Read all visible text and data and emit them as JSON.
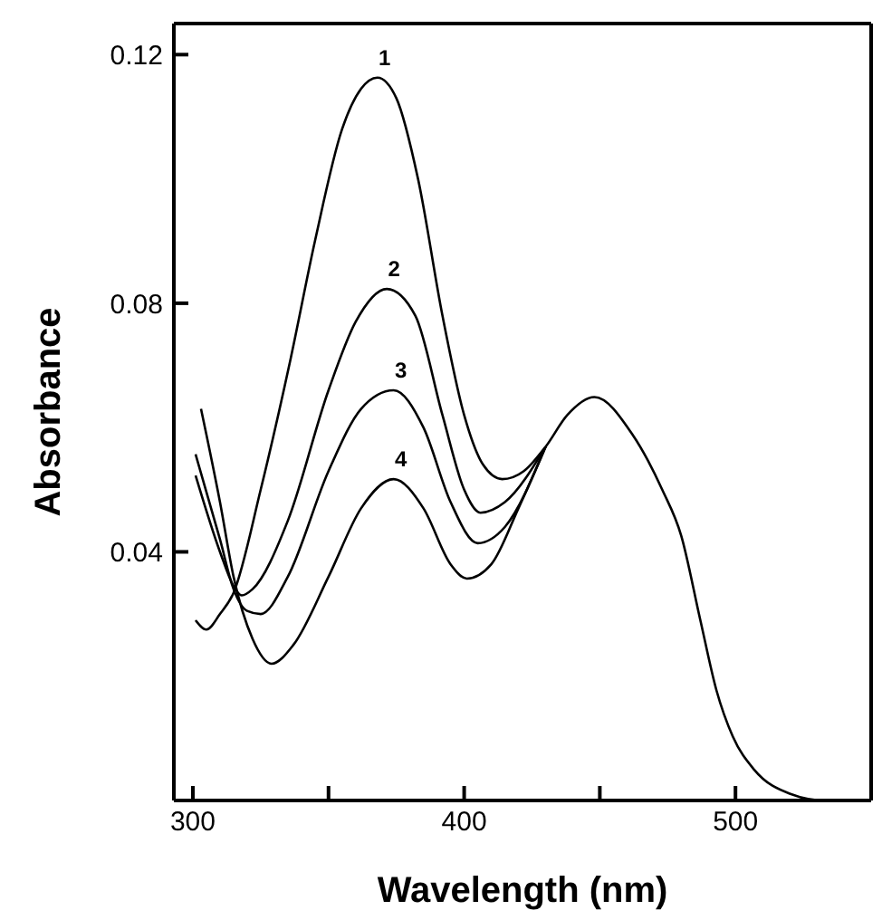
{
  "chart_data": {
    "type": "line",
    "xlabel": "Wavelength (nm)",
    "ylabel": "Absorbance",
    "xlim": [
      293,
      550
    ],
    "ylim": [
      0,
      0.125
    ],
    "xticks": [
      300,
      {
        "value": 350,
        "label": null
      },
      400,
      {
        "value": 450,
        "label": null
      },
      500
    ],
    "yticks": [
      0.04,
      0.08,
      0.12
    ],
    "grid": false,
    "legend": false,
    "marker": "none",
    "line_style": "solid",
    "series": [
      {
        "name": "1",
        "color": "#000000",
        "x": [
          301,
          305,
          310,
          315,
          325,
          336,
          345,
          355,
          362,
          368,
          375,
          383,
          392,
          400,
          407,
          414,
          422,
          430,
          438,
          448,
          462,
          473,
          480,
          487,
          493,
          499,
          507,
          520,
          533,
          550
        ],
        "values": [
          0.029,
          0.0275,
          0.03,
          0.0334,
          0.05,
          0.071,
          0.09,
          0.108,
          0.1145,
          0.1163,
          0.113,
          0.1,
          0.078,
          0.062,
          0.054,
          0.0517,
          0.053,
          0.0569,
          0.062,
          0.0649,
          0.0589,
          0.05,
          0.0426,
          0.0291,
          0.0177,
          0.0103,
          0.0049,
          0.0011,
          0,
          0
        ]
      },
      {
        "name": "2",
        "color": "#000000",
        "x": [
          301,
          310,
          315,
          318,
          322,
          335,
          350,
          360,
          371.5,
          382,
          392,
          400,
          406,
          415,
          430
        ],
        "values": [
          0.0523,
          0.04,
          0.0345,
          0.033,
          0.034,
          0.045,
          0.066,
          0.077,
          0.0823,
          0.078,
          0.062,
          0.05,
          0.0463,
          0.048,
          0.0569
        ]
      },
      {
        "name": "3",
        "color": "#000000",
        "x": [
          301,
          310,
          315,
          320,
          325,
          335,
          350,
          362,
          374,
          385,
          395,
          405,
          415,
          430
        ],
        "values": [
          0.0557,
          0.042,
          0.034,
          0.0305,
          0.03,
          0.036,
          0.053,
          0.063,
          0.066,
          0.06,
          0.048,
          0.0414,
          0.044,
          0.0569
        ]
      },
      {
        "name": "4",
        "color": "#000000",
        "x": [
          303,
          310,
          315,
          322,
          329,
          337,
          350,
          362,
          374,
          385,
          395,
          401,
          410,
          420,
          430
        ],
        "values": [
          0.063,
          0.048,
          0.036,
          0.026,
          0.022,
          0.025,
          0.036,
          0.047,
          0.0517,
          0.047,
          0.038,
          0.0357,
          0.038,
          0.047,
          0.0569
        ]
      }
    ]
  }
}
